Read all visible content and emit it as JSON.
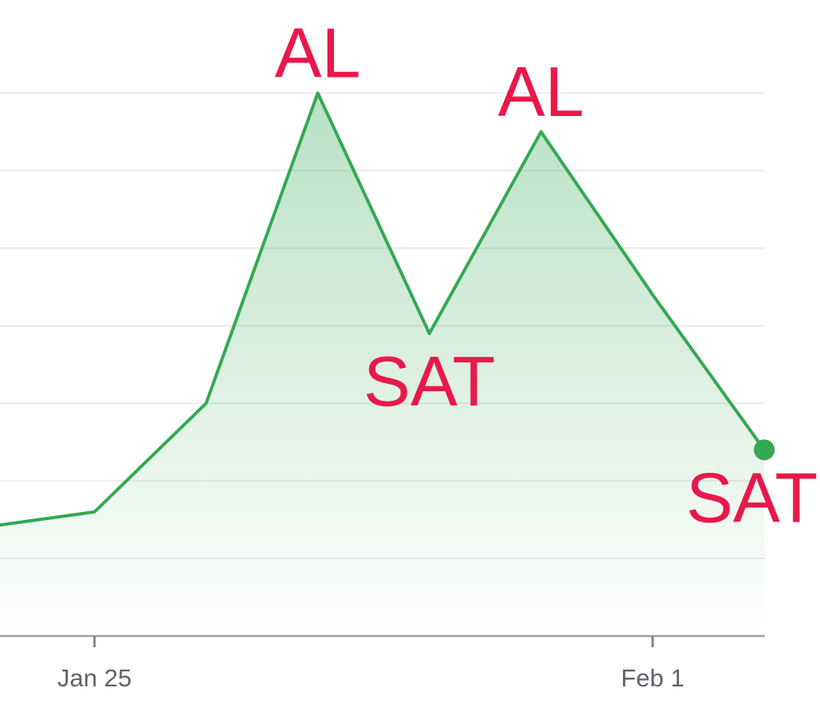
{
  "chart_data": {
    "type": "area",
    "categories": [
      null,
      "Jan 25",
      null,
      null,
      null,
      null,
      "Feb 1",
      null
    ],
    "values": [
      1.4,
      1.6,
      3.0,
      7.0,
      3.9,
      6.5,
      4.4,
      2.4
    ],
    "color": "#34a853",
    "ylim": [
      0,
      8.2
    ],
    "gridlines": [
      1,
      2,
      3,
      4,
      5,
      6,
      7
    ],
    "grid": true,
    "annotations": [
      {
        "text": "AL",
        "at": 3,
        "side": "above"
      },
      {
        "text": "SAT",
        "at": 4,
        "side": "below"
      },
      {
        "text": "AL",
        "at": 5,
        "side": "above"
      },
      {
        "text": "SAT",
        "at": 7,
        "side": "below"
      }
    ],
    "annotation_color": "#e8194a"
  }
}
